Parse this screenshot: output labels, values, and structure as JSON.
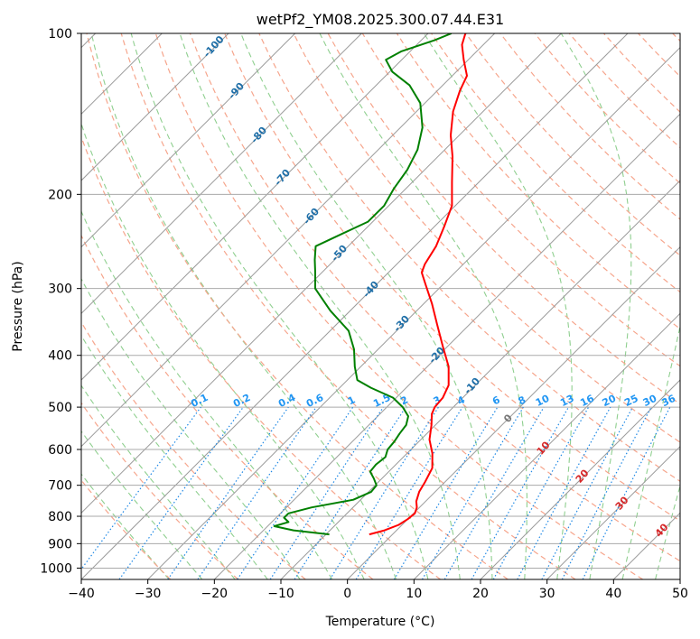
{
  "chart_data": {
    "type": "line",
    "title": "wetPf2_YM08.2025.300.07.44.E31",
    "xlabel": "Temperature (°C)",
    "ylabel": "Pressure (hPa)",
    "xlim": [
      -40,
      50
    ],
    "ylim": [
      1050,
      100
    ],
    "x_ticks": [
      -40,
      -30,
      -20,
      -10,
      0,
      10,
      20,
      30,
      40,
      50
    ],
    "y_ticks": [
      100,
      200,
      300,
      400,
      500,
      600,
      700,
      800,
      900,
      1000
    ],
    "skew": 45,
    "series": [
      {
        "name": "Temperature",
        "color": "#ff0000",
        "points": [
          {
            "p": 865,
            "t": -3.5
          },
          {
            "p": 850,
            "t": -1.8
          },
          {
            "p": 830,
            "t": -0.5
          },
          {
            "p": 810,
            "t": 0.0
          },
          {
            "p": 790,
            "t": 0.2
          },
          {
            "p": 770,
            "t": -0.4
          },
          {
            "p": 750,
            "t": -1.4
          },
          {
            "p": 720,
            "t": -2.4
          },
          {
            "p": 690,
            "t": -3.0
          },
          {
            "p": 650,
            "t": -4.0
          },
          {
            "p": 610,
            "t": -6.2
          },
          {
            "p": 575,
            "t": -8.7
          },
          {
            "p": 540,
            "t": -10.6
          },
          {
            "p": 515,
            "t": -12.2
          },
          {
            "p": 500,
            "t": -12.8
          },
          {
            "p": 480,
            "t": -13.0
          },
          {
            "p": 455,
            "t": -14.0
          },
          {
            "p": 420,
            "t": -16.8
          },
          {
            "p": 385,
            "t": -20.7
          },
          {
            "p": 350,
            "t": -24.9
          },
          {
            "p": 320,
            "t": -28.8
          },
          {
            "p": 295,
            "t": -32.6
          },
          {
            "p": 280,
            "t": -35.0
          },
          {
            "p": 270,
            "t": -35.8
          },
          {
            "p": 250,
            "t": -36.8
          },
          {
            "p": 230,
            "t": -38.5
          },
          {
            "p": 210,
            "t": -40.5
          },
          {
            "p": 190,
            "t": -44.0
          },
          {
            "p": 170,
            "t": -47.8
          },
          {
            "p": 155,
            "t": -51.3
          },
          {
            "p": 140,
            "t": -54.5
          },
          {
            "p": 128,
            "t": -56.6
          },
          {
            "p": 120,
            "t": -57.8
          },
          {
            "p": 112,
            "t": -60.7
          },
          {
            "p": 105,
            "t": -63.2
          },
          {
            "p": 100,
            "t": -64.4
          }
        ]
      },
      {
        "name": "Dewpoint",
        "color": "#008000",
        "points": [
          {
            "p": 865,
            "t": -9.5
          },
          {
            "p": 850,
            "t": -15.5
          },
          {
            "p": 835,
            "t": -19.0
          },
          {
            "p": 820,
            "t": -17.5
          },
          {
            "p": 805,
            "t": -18.8
          },
          {
            "p": 790,
            "t": -18.8
          },
          {
            "p": 770,
            "t": -16.2
          },
          {
            "p": 745,
            "t": -11.1
          },
          {
            "p": 720,
            "t": -9.6
          },
          {
            "p": 700,
            "t": -9.8
          },
          {
            "p": 680,
            "t": -11.2
          },
          {
            "p": 660,
            "t": -12.8
          },
          {
            "p": 640,
            "t": -13.0
          },
          {
            "p": 620,
            "t": -12.7
          },
          {
            "p": 600,
            "t": -13.5
          },
          {
            "p": 580,
            "t": -13.7
          },
          {
            "p": 560,
            "t": -14.1
          },
          {
            "p": 540,
            "t": -14.4
          },
          {
            "p": 520,
            "t": -15.4
          },
          {
            "p": 500,
            "t": -17.6
          },
          {
            "p": 480,
            "t": -20.5
          },
          {
            "p": 460,
            "t": -25.3
          },
          {
            "p": 445,
            "t": -28.5
          },
          {
            "p": 420,
            "t": -30.9
          },
          {
            "p": 390,
            "t": -33.6
          },
          {
            "p": 360,
            "t": -37.2
          },
          {
            "p": 330,
            "t": -43.0
          },
          {
            "p": 300,
            "t": -48.6
          },
          {
            "p": 280,
            "t": -51.0
          },
          {
            "p": 265,
            "t": -53.0
          },
          {
            "p": 250,
            "t": -54.9
          },
          {
            "p": 240,
            "t": -53.3
          },
          {
            "p": 225,
            "t": -50.7
          },
          {
            "p": 210,
            "t": -50.7
          },
          {
            "p": 195,
            "t": -51.8
          },
          {
            "p": 180,
            "t": -52.6
          },
          {
            "p": 165,
            "t": -54.1
          },
          {
            "p": 150,
            "t": -56.7
          },
          {
            "p": 135,
            "t": -60.7
          },
          {
            "p": 125,
            "t": -65.0
          },
          {
            "p": 118,
            "t": -69.6
          },
          {
            "p": 112,
            "t": -72.4
          },
          {
            "p": 108,
            "t": -71.3
          },
          {
            "p": 103,
            "t": -68.0
          },
          {
            "p": 100,
            "t": -66.5
          }
        ]
      }
    ],
    "dry_adiabat_labels": [
      "-100",
      "-90",
      "-80",
      "-70",
      "-60",
      "-50",
      "-40",
      "-30",
      "-20",
      "-10"
    ],
    "moist_adiabat_labels": [
      "0",
      "10",
      "20",
      "30",
      "40"
    ],
    "mixing_ratio_labels": [
      "0.1",
      "0.2",
      "0.4",
      "0.6",
      "1",
      "1.5",
      "2",
      "3",
      "4",
      "6",
      "8",
      "10",
      "13",
      "16",
      "20",
      "25",
      "30",
      "36"
    ],
    "colors": {
      "isobar": "#aaaaaa",
      "isotherm": "#9a9a9a",
      "dry_adiabat": "#f6a58c",
      "moist_adiabat": "#8fcf8f",
      "mixing_ratio": "#1e88e5",
      "dry_label": "#1f6fa8",
      "mixing_label": "#2196f3",
      "moist_label": "#d62728"
    }
  }
}
